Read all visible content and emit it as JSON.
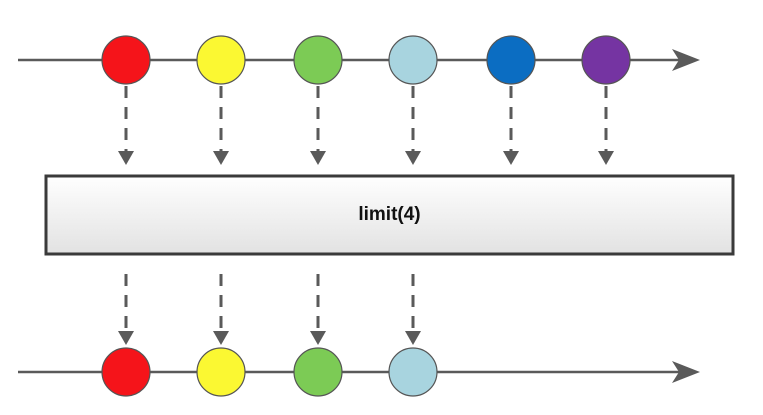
{
  "operator": {
    "label": "limit(4)"
  },
  "input_stream": {
    "items": [
      {
        "color": "#f5141a"
      },
      {
        "color": "#fbf832"
      },
      {
        "color": "#7ccb55"
      },
      {
        "color": "#a8d4df"
      },
      {
        "color": "#0b6dc2"
      },
      {
        "color": "#7534a2"
      }
    ]
  },
  "output_stream": {
    "items": [
      {
        "color": "#f5141a"
      },
      {
        "color": "#fbf832"
      },
      {
        "color": "#7ccb55"
      },
      {
        "color": "#a8d4df"
      }
    ]
  },
  "styles": {
    "line_color": "#5a5a5a",
    "box_border": "#3a3a3a",
    "box_fill_top": "#ffffff",
    "box_fill_bottom": "#e2e2e2"
  }
}
